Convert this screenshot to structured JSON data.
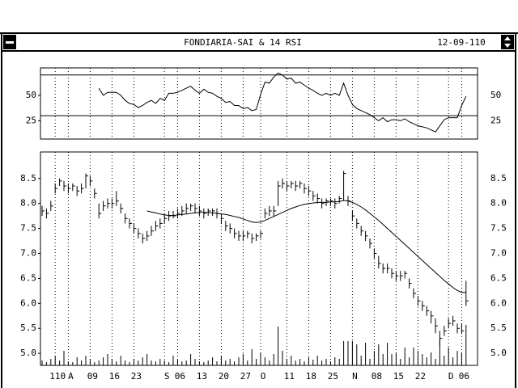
{
  "window": {
    "title": "FONDIARIA-SAI & 14 RSI",
    "date": "12-09-110"
  },
  "chart_data": [
    {
      "type": "line",
      "ylim": [
        7,
        77
      ],
      "yticks": [
        25,
        50
      ],
      "levels": [
        30,
        70
      ],
      "color": "#000000",
      "vgrid": true,
      "values": [
        null,
        null,
        null,
        null,
        null,
        null,
        null,
        null,
        null,
        null,
        null,
        null,
        null,
        57,
        50,
        53,
        53,
        53,
        50,
        45,
        42,
        41,
        38,
        40,
        43,
        45,
        42,
        47,
        45,
        52,
        52,
        53,
        55,
        57,
        59,
        55,
        52,
        56,
        53,
        52,
        49,
        47,
        43,
        44,
        40,
        40,
        37,
        38,
        35,
        36,
        51,
        63,
        62,
        68,
        72,
        70,
        66,
        67,
        62,
        63,
        60,
        57,
        55,
        52,
        50,
        52,
        50,
        52,
        50,
        62,
        50,
        41,
        37,
        35,
        33,
        31,
        28,
        25,
        28,
        24,
        26,
        26,
        25,
        27,
        24,
        22,
        20,
        19,
        18,
        16,
        14,
        20,
        26,
        28,
        28,
        28,
        40,
        49
      ]
    },
    {
      "type": "ohlc",
      "ylim": [
        4.76,
        9.03
      ],
      "color": "#000000",
      "vgrid": true,
      "yticks": [
        {
          "value": 5,
          "label": "5.0"
        },
        5.5,
        {
          "value": 6,
          "label": "6.0"
        },
        6.5,
        {
          "value": 7,
          "label": "7.0"
        },
        7.5,
        {
          "value": 8,
          "label": "8.0"
        },
        8.5
      ],
      "categories": [
        null,
        null,
        null,
        "110",
        null,
        null,
        "A",
        null,
        null,
        null,
        null,
        "09",
        null,
        null,
        null,
        null,
        "16",
        null,
        null,
        null,
        null,
        "23",
        null,
        null,
        null,
        null,
        null,
        null,
        "S",
        null,
        null,
        "06",
        null,
        null,
        null,
        null,
        "13",
        null,
        null,
        null,
        null,
        "20",
        null,
        null,
        null,
        null,
        "27",
        null,
        null,
        null,
        "O",
        null,
        null,
        null,
        null,
        null,
        "11",
        null,
        null,
        null,
        null,
        "18",
        null,
        null,
        null,
        null,
        "25",
        null,
        null,
        null,
        null,
        "N",
        null,
        null,
        null,
        null,
        "08",
        null,
        null,
        null,
        null,
        "15",
        null,
        null,
        null,
        null,
        "22",
        null,
        null,
        null,
        null,
        null,
        null,
        "D",
        null,
        null,
        "06",
        null
      ],
      "high": [
        7.95,
        7.9,
        8.05,
        8.4,
        8.5,
        8.45,
        8.4,
        8.4,
        8.35,
        8.4,
        8.6,
        8.55,
        8.3,
        8.0,
        8.05,
        8.1,
        8.1,
        8.25,
        8.0,
        7.8,
        7.7,
        7.6,
        7.5,
        7.4,
        7.45,
        7.55,
        7.65,
        7.7,
        7.8,
        7.85,
        7.85,
        7.9,
        7.95,
        8.0,
        8.0,
        8.0,
        7.95,
        7.9,
        7.9,
        7.9,
        7.9,
        7.8,
        7.65,
        7.6,
        7.5,
        7.45,
        7.45,
        7.45,
        7.4,
        7.4,
        7.45,
        7.9,
        7.95,
        7.95,
        8.45,
        8.5,
        8.45,
        8.45,
        8.45,
        8.45,
        8.4,
        8.35,
        8.25,
        8.2,
        8.1,
        8.1,
        8.1,
        8.1,
        8.15,
        8.65,
        8.15,
        7.85,
        7.7,
        7.55,
        7.45,
        7.3,
        7.1,
        6.95,
        6.8,
        6.8,
        6.7,
        6.65,
        6.65,
        6.65,
        6.5,
        6.3,
        6.15,
        6.05,
        5.95,
        5.85,
        5.7,
        5.45,
        5.55,
        5.7,
        5.75,
        5.6,
        5.6,
        6.45
      ],
      "low": [
        7.75,
        7.7,
        7.85,
        8.2,
        8.35,
        8.25,
        8.2,
        8.25,
        8.15,
        8.2,
        8.3,
        8.35,
        8.1,
        7.7,
        7.85,
        7.9,
        7.9,
        7.95,
        7.8,
        7.6,
        7.5,
        7.4,
        7.3,
        7.2,
        7.25,
        7.35,
        7.45,
        7.5,
        7.6,
        7.65,
        7.7,
        7.7,
        7.75,
        7.8,
        7.85,
        7.8,
        7.75,
        7.7,
        7.75,
        7.75,
        7.7,
        7.6,
        7.45,
        7.4,
        7.3,
        7.25,
        7.25,
        7.3,
        7.2,
        7.25,
        7.3,
        7.7,
        7.75,
        7.75,
        7.95,
        8.3,
        8.25,
        8.3,
        8.25,
        8.3,
        8.2,
        8.15,
        8.05,
        8.0,
        7.9,
        7.95,
        7.95,
        7.9,
        8.0,
        8.05,
        7.95,
        7.65,
        7.5,
        7.35,
        7.25,
        7.1,
        6.9,
        6.7,
        6.6,
        6.6,
        6.5,
        6.45,
        6.45,
        6.5,
        6.3,
        6.1,
        5.95,
        5.85,
        5.75,
        5.6,
        5.4,
        5.15,
        5.35,
        5.5,
        5.55,
        5.4,
        5.4,
        5.95
      ],
      "close": [
        7.85,
        7.8,
        7.95,
        8.3,
        8.45,
        8.35,
        8.3,
        8.35,
        8.25,
        8.3,
        8.55,
        8.45,
        8.2,
        7.8,
        7.95,
        8.0,
        8.0,
        8.05,
        7.9,
        7.7,
        7.6,
        7.5,
        7.4,
        7.3,
        7.35,
        7.45,
        7.55,
        7.6,
        7.7,
        7.75,
        7.75,
        7.8,
        7.85,
        7.9,
        7.95,
        7.9,
        7.85,
        7.8,
        7.85,
        7.85,
        7.8,
        7.7,
        7.55,
        7.5,
        7.4,
        7.35,
        7.35,
        7.4,
        7.3,
        7.35,
        7.4,
        7.8,
        7.85,
        7.85,
        8.35,
        8.4,
        8.35,
        8.4,
        8.35,
        8.4,
        8.3,
        8.25,
        8.15,
        8.1,
        8.0,
        8.05,
        8.05,
        8.0,
        8.1,
        8.6,
        8.05,
        7.75,
        7.6,
        7.45,
        7.35,
        7.2,
        7.0,
        6.8,
        6.7,
        6.7,
        6.6,
        6.55,
        6.55,
        6.6,
        6.4,
        6.2,
        6.05,
        5.95,
        5.85,
        5.75,
        5.55,
        5.3,
        5.45,
        5.6,
        5.65,
        5.5,
        5.45,
        6.05
      ],
      "ma": [
        null,
        null,
        null,
        null,
        null,
        null,
        null,
        null,
        null,
        null,
        null,
        null,
        null,
        null,
        null,
        null,
        null,
        null,
        null,
        null,
        null,
        null,
        null,
        null,
        7.85,
        7.83,
        7.81,
        7.79,
        7.77,
        7.76,
        7.76,
        7.77,
        7.78,
        7.79,
        7.8,
        7.81,
        7.82,
        7.82,
        7.82,
        7.81,
        7.8,
        7.79,
        7.78,
        7.76,
        7.74,
        7.72,
        7.69,
        7.66,
        7.63,
        7.62,
        7.63,
        7.66,
        7.7,
        7.74,
        7.78,
        7.82,
        7.86,
        7.9,
        7.93,
        7.96,
        7.98,
        8.0,
        8.01,
        8.02,
        8.02,
        8.02,
        8.03,
        8.03,
        8.04,
        8.06,
        8.05,
        8.02,
        7.98,
        7.93,
        7.87,
        7.8,
        7.73,
        7.66,
        7.58,
        7.5,
        7.42,
        7.34,
        7.26,
        7.18,
        7.1,
        7.02,
        6.94,
        6.86,
        6.78,
        6.7,
        6.62,
        6.54,
        6.46,
        6.39,
        6.32,
        6.26,
        6.22,
        6.22
      ],
      "volume_ylim": [
        0,
        100
      ],
      "volume": [
        6,
        4,
        8,
        12,
        6,
        18,
        5,
        4,
        10,
        6,
        12,
        8,
        4,
        6,
        10,
        14,
        8,
        5,
        12,
        6,
        4,
        8,
        6,
        10,
        14,
        6,
        5,
        8,
        6,
        4,
        12,
        7,
        5,
        6,
        14,
        8,
        5,
        4,
        6,
        10,
        5,
        12,
        6,
        8,
        5,
        10,
        14,
        6,
        20,
        8,
        16,
        10,
        6,
        14,
        48,
        18,
        8,
        12,
        6,
        8,
        5,
        10,
        7,
        12,
        6,
        8,
        5,
        10,
        8,
        30,
        30,
        30,
        26,
        12,
        28,
        8,
        18,
        26,
        14,
        28,
        14,
        16,
        8,
        22,
        10,
        22,
        18,
        14,
        10,
        16,
        8,
        32,
        12,
        22,
        10,
        18,
        16,
        50
      ]
    }
  ]
}
